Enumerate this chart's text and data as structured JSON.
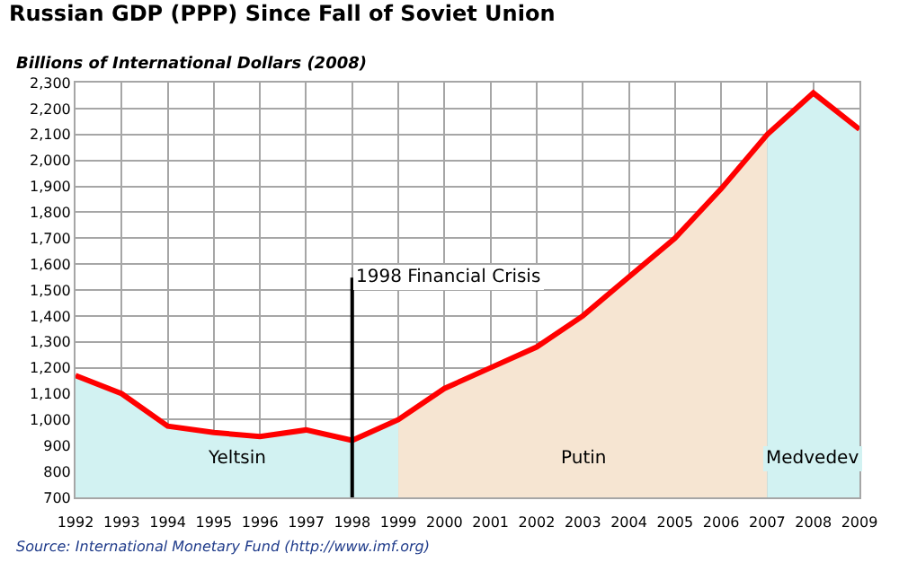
{
  "chart_data": {
    "type": "line",
    "title": "Russian GDP (PPP) Since Fall of Soviet Union",
    "subtitle": "Billions of International Dollars (2008)",
    "x": [
      1992,
      1993,
      1994,
      1995,
      1996,
      1997,
      1998,
      1999,
      2000,
      2001,
      2002,
      2003,
      2004,
      2005,
      2006,
      2007,
      2008,
      2009
    ],
    "series": [
      {
        "type": "area",
        "name": "Yeltsin",
        "color": "#d2f2f2",
        "x": [
          1992,
          1993,
          1994,
          1995,
          1996,
          1997,
          1998,
          1999
        ],
        "values": [
          1170,
          1100,
          975,
          950,
          935,
          960,
          920,
          1000
        ]
      },
      {
        "type": "area",
        "name": "Putin",
        "color": "#f6e5d2",
        "x": [
          1999,
          2000,
          2001,
          2002,
          2003,
          2004,
          2005,
          2006,
          2007
        ],
        "values": [
          1000,
          1120,
          1200,
          1280,
          1400,
          1550,
          1700,
          1890,
          2100
        ]
      },
      {
        "type": "area",
        "name": "Medvedev",
        "color": "#d2f2f2",
        "x": [
          2007,
          2008,
          2009
        ],
        "values": [
          2100,
          2260,
          2120
        ]
      },
      {
        "color": "#ff0000",
        "values": [
          1170,
          1100,
          975,
          950,
          935,
          960,
          920,
          1000,
          1120,
          1200,
          1280,
          1400,
          1550,
          1700,
          1890,
          2100,
          2260,
          2120
        ]
      }
    ],
    "xlim": [
      1992,
      2009
    ],
    "xticks": [
      1992,
      1993,
      1994,
      1995,
      1996,
      1997,
      1998,
      1999,
      2000,
      2001,
      2002,
      2003,
      2004,
      2005,
      2006,
      2007,
      2008,
      2009
    ],
    "ylim": [
      700,
      2300
    ],
    "yticks": [
      {
        "value": 700,
        "label": "700"
      },
      {
        "value": 800,
        "label": "800"
      },
      {
        "value": 900,
        "label": "900"
      },
      {
        "value": 1000,
        "label": "1,000"
      },
      {
        "value": 1100,
        "label": "1,100"
      },
      {
        "value": 1200,
        "label": "1,200"
      },
      {
        "value": 1300,
        "label": "1,300"
      },
      {
        "value": 1400,
        "label": "1,400"
      },
      {
        "value": 1500,
        "label": "1,500"
      },
      {
        "value": 1600,
        "label": "1,600"
      },
      {
        "value": 1700,
        "label": "1,700"
      },
      {
        "value": 1800,
        "label": "1,800"
      },
      {
        "value": 1900,
        "label": "1,900"
      },
      {
        "value": 2000,
        "label": "2,000"
      },
      {
        "value": 2100,
        "label": "2,100"
      },
      {
        "value": 2200,
        "label": "2,200"
      },
      {
        "value": 2300,
        "label": "2,300"
      }
    ],
    "ref_lines": [
      {
        "axis": "x",
        "value": 1998,
        "label": "1998 Financial Crisis",
        "color": "#000000"
      }
    ],
    "grid": true,
    "marker": "none",
    "line_style": "solid",
    "annotations": [
      "Source: International Monetary Fund (http://www.imf.org)"
    ]
  }
}
